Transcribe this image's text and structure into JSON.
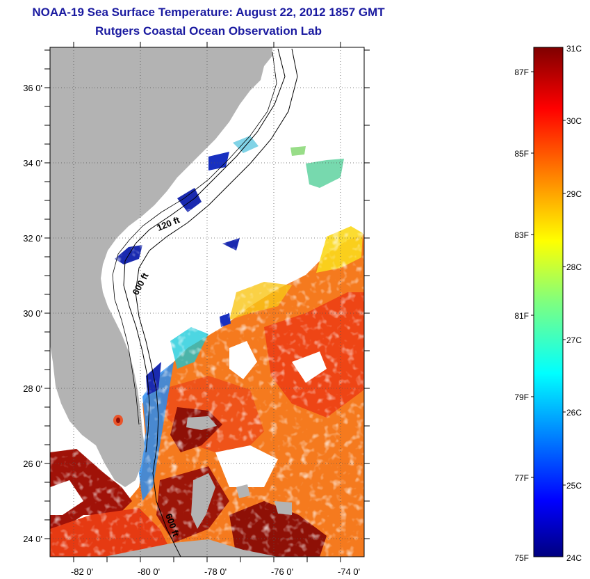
{
  "title": "NOAA-19 Sea Surface Temperature:  August 22, 2012 1857 GMT",
  "subtitle": "Rutgers Coastal Ocean Observation Lab",
  "map": {
    "lat_ticks": [
      "36 0'",
      "34 0'",
      "32 0'",
      "30 0'",
      "28 0'",
      "26 0'",
      "24 0'"
    ],
    "lon_ticks": [
      "-82 0'",
      "-80 0'",
      "-78 0'",
      "-76 0'",
      "-74 0'"
    ],
    "contour_labels": [
      "120 ft",
      "600 ft",
      "600 ft"
    ]
  },
  "colorbar": {
    "celsius": [
      "31C",
      "30C",
      "29C",
      "28C",
      "27C",
      "26C",
      "25C",
      "24C"
    ],
    "fahrenheit": [
      "87F",
      "85F",
      "83F",
      "81F",
      "79F",
      "77F",
      "75F"
    ],
    "colors": [
      "#00007f",
      "#0000ff",
      "#007fff",
      "#00ffff",
      "#7fff7f",
      "#ffff00",
      "#ff7f00",
      "#ff0000",
      "#7f0000"
    ]
  }
}
